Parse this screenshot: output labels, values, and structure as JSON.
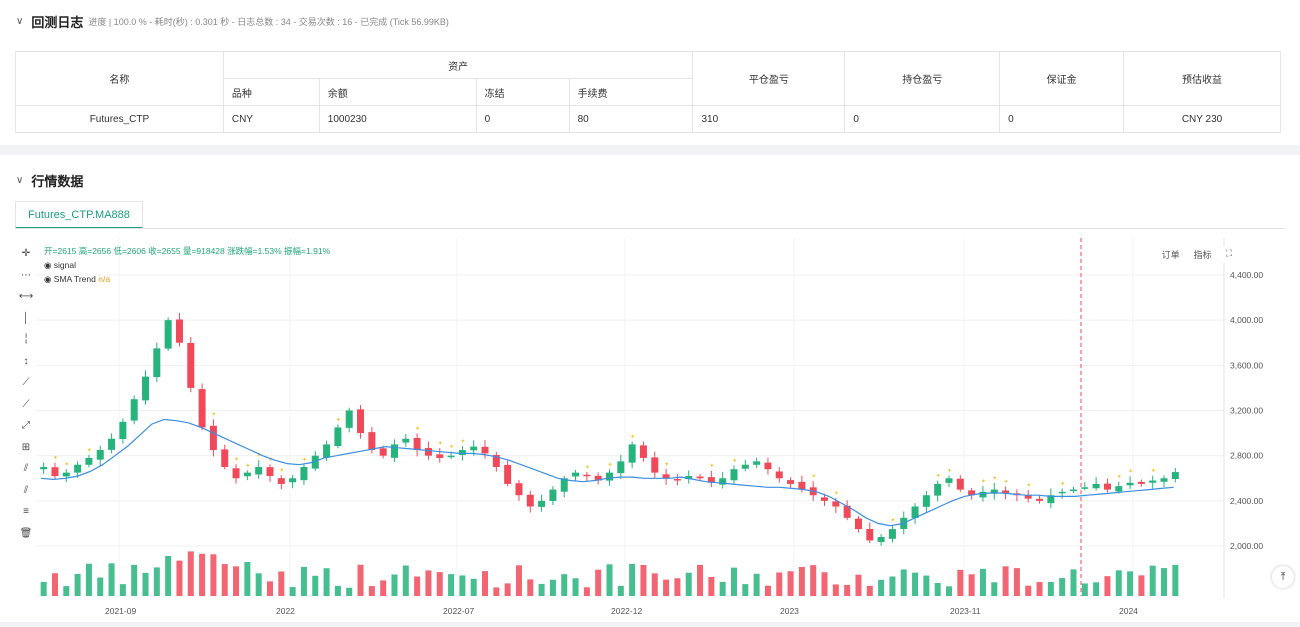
{
  "backtest_log": {
    "title": "回测日志",
    "subtitle": "进度 | 100.0 % - 耗时(秒) : 0.301 秒 - 日志总数 : 34 - 交易次数 : 16 - 已完成 (Tick 56.99KB)"
  },
  "table": {
    "headers": {
      "name": "名称",
      "assets": "资产",
      "variety": "品种",
      "balance": "余额",
      "frozen": "冻结",
      "fee": "手续费",
      "close_pnl": "平仓盈亏",
      "position_pnl": "持仓盈亏",
      "margin": "保证金",
      "est_profit": "预估收益"
    },
    "row": {
      "name": "Futures_CTP",
      "variety": "CNY",
      "balance": "1000230",
      "frozen": "0",
      "fee": "80",
      "close_pnl": "310",
      "position_pnl": "0",
      "margin": "0",
      "est_profit": "CNY 230"
    }
  },
  "market": {
    "title": "行情数据",
    "tab": "Futures_CTP.MA888",
    "legend_ohlc": "开=2615 高=2656 低=2606 收=2655 量=918428 涨跌幅=1.53% 振幅=1.91%",
    "legend_signal": "signal",
    "legend_sma": "SMA Trend",
    "legend_sma_value": "n/a",
    "btn_order": "订单",
    "btn_indicator": "指标",
    "btn_expand": "⛶",
    "scroll_btn": "⤒"
  },
  "toolbar_icons": [
    "crosshair-icon",
    "horizontal-ray-icon",
    "horizontal-line-icon",
    "vertical-line-icon",
    "vertical-segment-icon",
    "vertical-arrow-icon",
    "trend-line-icon",
    "ray-icon",
    "extended-line-icon",
    "price-range-icon",
    "parallel-channel-icon",
    "fib-channel-icon",
    "text-align-icon",
    "trash-icon"
  ],
  "colors": {
    "up": "#26b37c",
    "down": "#f04a5a",
    "sma": "#3b8fe0",
    "accent": "#1b9d82",
    "signal": "#f5c32c",
    "buy": "#2e5be8",
    "sell": "#c22ad8"
  },
  "chart_data": {
    "type": "candlestick",
    "x_ticks": [
      "2021-09",
      "2022",
      "2022-07",
      "2022-12",
      "2023",
      "2023-11",
      "2024"
    ],
    "y_ticks": [
      "4,400.00",
      "4,000.00",
      "3,600.00",
      "3,200.00",
      "2,800.00",
      "2,400.00",
      "2,000.00"
    ],
    "ylim": [
      1850,
      4550
    ],
    "series": [
      {
        "values": [
          2700,
          2620,
          2650,
          2720,
          2780,
          2850,
          2950,
          3100,
          3300,
          3500,
          3750,
          4000,
          3800,
          3400,
          3050,
          2850,
          2700,
          2600,
          2650,
          2700,
          2620,
          2550,
          2600,
          2700,
          2800,
          2900,
          3050,
          3200,
          3000,
          2850,
          2800,
          2900,
          2950,
          2850,
          2800,
          2780,
          2800,
          2850,
          2880,
          2820,
          2700,
          2550,
          2450,
          2350,
          2400,
          2500,
          2600,
          2650,
          2620,
          2580,
          2650,
          2750,
          2900,
          2780,
          2650,
          2600,
          2580,
          2620,
          2600,
          2560,
          2600,
          2680,
          2720,
          2750,
          2680,
          2600,
          2550,
          2500,
          2450,
          2400,
          2350,
          2250,
          2150,
          2050,
          2080,
          2150,
          2250,
          2350,
          2450,
          2550,
          2600,
          2500,
          2450,
          2480,
          2500,
          2470,
          2450,
          2420,
          2400,
          2450,
          2480,
          2500,
          2520,
          2550,
          2500,
          2530,
          2560,
          2550,
          2580,
          2600,
          2655
        ]
      }
    ],
    "sma": [
      2600,
      2590,
      2600,
      2620,
      2660,
      2720,
      2800,
      2880,
      2980,
      3080,
      3120,
      3110,
      3090,
      3050,
      3000,
      2950,
      2900,
      2850,
      2800,
      2760,
      2730,
      2720,
      2740,
      2780,
      2800,
      2820,
      2840,
      2860,
      2880,
      2870,
      2860,
      2850,
      2840,
      2830,
      2820,
      2820,
      2810,
      2790,
      2760,
      2720,
      2680,
      2640,
      2600,
      2580,
      2570,
      2580,
      2600,
      2610,
      2610,
      2600,
      2600,
      2600,
      2610,
      2590,
      2570,
      2560,
      2550,
      2540,
      2530,
      2520,
      2520,
      2510,
      2500,
      2480,
      2440,
      2380,
      2320,
      2250,
      2200,
      2180,
      2200,
      2250,
      2300,
      2350,
      2400,
      2440,
      2460,
      2470,
      2470,
      2460,
      2450,
      2450,
      2440,
      2440,
      2440,
      2450,
      2460,
      2470,
      2480,
      2490,
      2500,
      2510,
      2520
    ]
  }
}
